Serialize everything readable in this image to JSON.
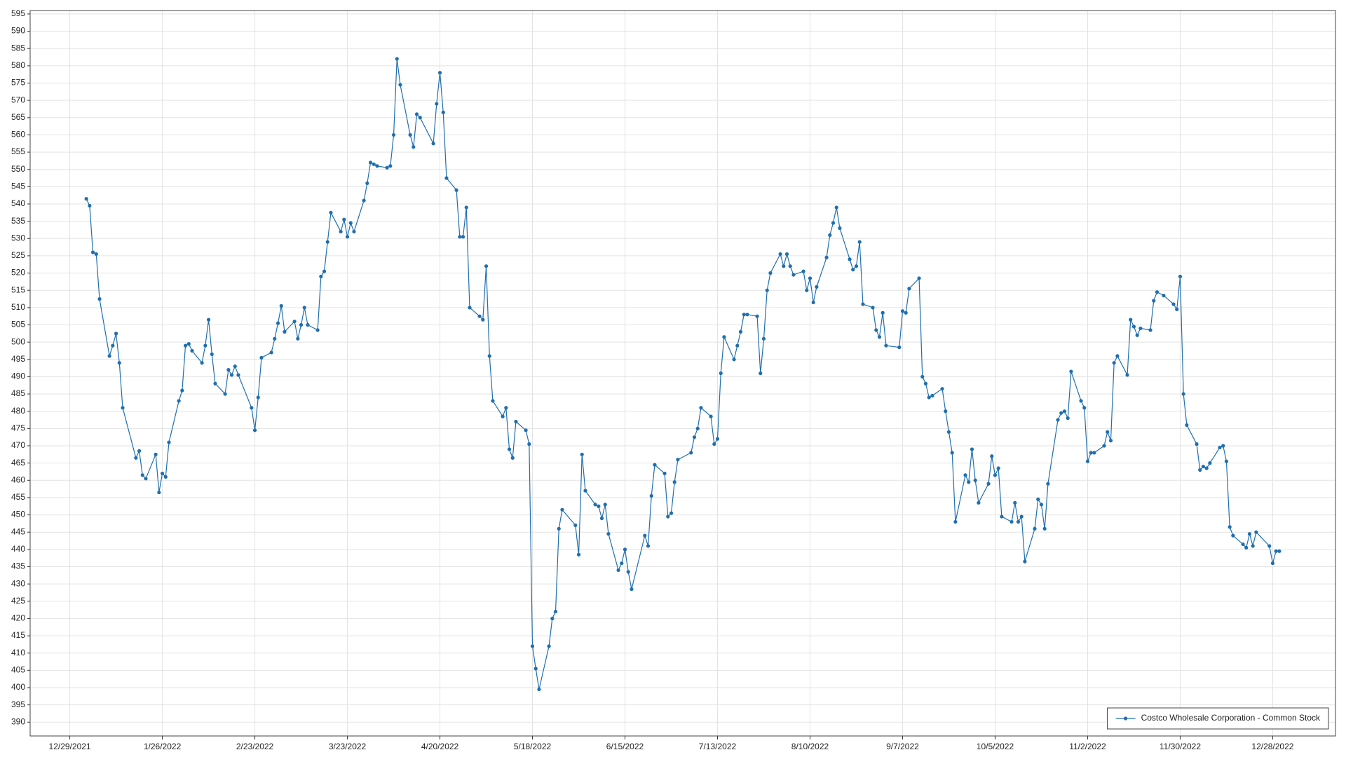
{
  "chart_data": {
    "type": "line",
    "x": [
      "1/3/2022",
      "1/4/2022",
      "1/5/2022",
      "1/6/2022",
      "1/7/2022",
      "1/10/2022",
      "1/11/2022",
      "1/12/2022",
      "1/13/2022",
      "1/14/2022",
      "1/18/2022",
      "1/19/2022",
      "1/20/2022",
      "1/21/2022",
      "1/24/2022",
      "1/25/2022",
      "1/26/2022",
      "1/27/2022",
      "1/28/2022",
      "1/31/2022",
      "2/1/2022",
      "2/2/2022",
      "2/3/2022",
      "2/4/2022",
      "2/7/2022",
      "2/8/2022",
      "2/9/2022",
      "2/10/2022",
      "2/11/2022",
      "2/14/2022",
      "2/15/2022",
      "2/16/2022",
      "2/17/2022",
      "2/18/2022",
      "2/22/2022",
      "2/23/2022",
      "2/24/2022",
      "2/25/2022",
      "2/28/2022",
      "3/1/2022",
      "3/2/2022",
      "3/3/2022",
      "3/4/2022",
      "3/7/2022",
      "3/8/2022",
      "3/9/2022",
      "3/10/2022",
      "3/11/2022",
      "3/14/2022",
      "3/15/2022",
      "3/16/2022",
      "3/17/2022",
      "3/18/2022",
      "3/21/2022",
      "3/22/2022",
      "3/23/2022",
      "3/24/2022",
      "3/25/2022",
      "3/28/2022",
      "3/29/2022",
      "3/30/2022",
      "3/31/2022",
      "4/1/2022",
      "4/4/2022",
      "4/5/2022",
      "4/6/2022",
      "4/7/2022",
      "4/8/2022",
      "4/11/2022",
      "4/12/2022",
      "4/13/2022",
      "4/14/2022",
      "4/18/2022",
      "4/19/2022",
      "4/20/2022",
      "4/21/2022",
      "4/22/2022",
      "4/25/2022",
      "4/26/2022",
      "4/27/2022",
      "4/28/2022",
      "4/29/2022",
      "5/2/2022",
      "5/3/2022",
      "5/4/2022",
      "5/5/2022",
      "5/6/2022",
      "5/9/2022",
      "5/10/2022",
      "5/11/2022",
      "5/12/2022",
      "5/13/2022",
      "5/16/2022",
      "5/17/2022",
      "5/18/2022",
      "5/19/2022",
      "5/20/2022",
      "5/23/2022",
      "5/24/2022",
      "5/25/2022",
      "5/26/2022",
      "5/27/2022",
      "5/31/2022",
      "6/1/2022",
      "6/2/2022",
      "6/3/2022",
      "6/6/2022",
      "6/7/2022",
      "6/8/2022",
      "6/9/2022",
      "6/10/2022",
      "6/13/2022",
      "6/14/2022",
      "6/15/2022",
      "6/16/2022",
      "6/17/2022",
      "6/21/2022",
      "6/22/2022",
      "6/23/2022",
      "6/24/2022",
      "6/27/2022",
      "6/28/2022",
      "6/29/2022",
      "6/30/2022",
      "7/1/2022",
      "7/5/2022",
      "7/6/2022",
      "7/7/2022",
      "7/8/2022",
      "7/11/2022",
      "7/12/2022",
      "7/13/2022",
      "7/14/2022",
      "7/15/2022",
      "7/18/2022",
      "7/19/2022",
      "7/20/2022",
      "7/21/2022",
      "7/22/2022",
      "7/25/2022",
      "7/26/2022",
      "7/27/2022",
      "7/28/2022",
      "7/29/2022",
      "8/1/2022",
      "8/2/2022",
      "8/3/2022",
      "8/4/2022",
      "8/5/2022",
      "8/8/2022",
      "8/9/2022",
      "8/10/2022",
      "8/11/2022",
      "8/12/2022",
      "8/15/2022",
      "8/16/2022",
      "8/17/2022",
      "8/18/2022",
      "8/19/2022",
      "8/22/2022",
      "8/23/2022",
      "8/24/2022",
      "8/25/2022",
      "8/26/2022",
      "8/29/2022",
      "8/30/2022",
      "8/31/2022",
      "9/1/2022",
      "9/2/2022",
      "9/6/2022",
      "9/7/2022",
      "9/8/2022",
      "9/9/2022",
      "9/12/2022",
      "9/13/2022",
      "9/14/2022",
      "9/15/2022",
      "9/16/2022",
      "9/19/2022",
      "9/20/2022",
      "9/21/2022",
      "9/22/2022",
      "9/23/2022",
      "9/26/2022",
      "9/27/2022",
      "9/28/2022",
      "9/29/2022",
      "9/30/2022",
      "10/3/2022",
      "10/4/2022",
      "10/5/2022",
      "10/6/2022",
      "10/7/2022",
      "10/10/2022",
      "10/11/2022",
      "10/12/2022",
      "10/13/2022",
      "10/14/2022",
      "10/17/2022",
      "10/18/2022",
      "10/19/2022",
      "10/20/2022",
      "10/21/2022",
      "10/24/2022",
      "10/25/2022",
      "10/26/2022",
      "10/27/2022",
      "10/28/2022",
      "10/31/2022",
      "11/1/2022",
      "11/2/2022",
      "11/3/2022",
      "11/4/2022",
      "11/7/2022",
      "11/8/2022",
      "11/9/2022",
      "11/10/2022",
      "11/11/2022",
      "11/14/2022",
      "11/15/2022",
      "11/16/2022",
      "11/17/2022",
      "11/18/2022",
      "11/21/2022",
      "11/22/2022",
      "11/23/2022",
      "11/25/2022",
      "11/28/2022",
      "11/29/2022",
      "11/30/2022",
      "12/1/2022",
      "12/2/2022",
      "12/5/2022",
      "12/6/2022",
      "12/7/2022",
      "12/8/2022",
      "12/9/2022",
      "12/12/2022",
      "12/13/2022",
      "12/14/2022",
      "12/15/2022",
      "12/16/2022",
      "12/19/2022",
      "12/20/2022",
      "12/21/2022",
      "12/22/2022",
      "12/23/2022",
      "12/27/2022",
      "12/28/2022",
      "12/29/2022",
      "12/30/2022"
    ],
    "series": [
      {
        "name": "Costco Wholesale Corporation - Common Stock",
        "color": "#1f6fae",
        "values": [
          541.5,
          539.5,
          526,
          525.5,
          512.5,
          496,
          499,
          502.5,
          494,
          481,
          466.5,
          468.5,
          461.5,
          460.5,
          467.5,
          456.5,
          462,
          461,
          471,
          483,
          486,
          499,
          499.5,
          497.5,
          494,
          499,
          506.5,
          496.5,
          488,
          485,
          492,
          490.5,
          493,
          490.5,
          481,
          474.5,
          484,
          495.5,
          497,
          501,
          505.5,
          510.5,
          503,
          506,
          501,
          505,
          510,
          505,
          503.5,
          519,
          520.5,
          529,
          537.5,
          532,
          535.5,
          530.5,
          534.5,
          532,
          541,
          546,
          552,
          551.5,
          551,
          550.5,
          551,
          560,
          582,
          574.5,
          560,
          556.5,
          566,
          565,
          557.5,
          569,
          578,
          566.5,
          547.5,
          544,
          530.5,
          530.5,
          539,
          510,
          507.5,
          506.5,
          522,
          496,
          483,
          478.5,
          481,
          469,
          466.5,
          477,
          474.5,
          470.5,
          412,
          405.5,
          399.5,
          412,
          420,
          422,
          446,
          451.5,
          447,
          438.5,
          467.5,
          457,
          453,
          452.5,
          449,
          453,
          444.5,
          434,
          436,
          440,
          433.5,
          428.5,
          444,
          441,
          455.5,
          464.5,
          462,
          449.5,
          450.5,
          459.5,
          466,
          468,
          472.5,
          475,
          481,
          478.5,
          470.5,
          472,
          491,
          501.5,
          495,
          499,
          503,
          508,
          508,
          507.5,
          491,
          501,
          515,
          520,
          525.5,
          522,
          525.5,
          522,
          519.5,
          520.5,
          515,
          518.5,
          511.5,
          516,
          524.5,
          531,
          534.5,
          539,
          533,
          524,
          521,
          522,
          529,
          511,
          510,
          503.5,
          501.5,
          508.5,
          499,
          498.5,
          509,
          508.5,
          515.5,
          518.5,
          490,
          488,
          484,
          484.5,
          486.5,
          480,
          474,
          468,
          448,
          461.5,
          459.5,
          469,
          460,
          453.5,
          459,
          467,
          461.5,
          463.5,
          449.5,
          448,
          453.5,
          448,
          449.5,
          436.5,
          446,
          454.5,
          453,
          446,
          459,
          477.5,
          479.5,
          480,
          478,
          491.5,
          483,
          481,
          465.5,
          468,
          468,
          470,
          474,
          471.5,
          494,
          496,
          490.5,
          506.5,
          504.5,
          502,
          504,
          503.5,
          512,
          514.5,
          513.5,
          511,
          509.5,
          519,
          485,
          476,
          470.5,
          463,
          464,
          463.5,
          465,
          469.5,
          470,
          465.5,
          446.5,
          444,
          441.5,
          440.5,
          444.5,
          441,
          445,
          441,
          436,
          439.5,
          439.5
        ]
      }
    ],
    "xlim": [
      "12/17/2021",
      "1/16/2023"
    ],
    "xticks": [
      "12/29/2021",
      "1/26/2022",
      "2/23/2022",
      "3/23/2022",
      "4/20/2022",
      "5/18/2022",
      "6/15/2022",
      "7/13/2022",
      "8/10/2022",
      "9/7/2022",
      "10/5/2022",
      "11/2/2022",
      "11/30/2022",
      "12/28/2022"
    ],
    "ylim": [
      386,
      596
    ],
    "yticks": [
      390,
      395,
      400,
      405,
      410,
      415,
      420,
      425,
      430,
      435,
      440,
      445,
      450,
      455,
      460,
      465,
      470,
      475,
      480,
      485,
      490,
      495,
      500,
      505,
      510,
      515,
      520,
      525,
      530,
      535,
      540,
      545,
      550,
      555,
      560,
      565,
      570,
      575,
      580,
      585,
      590,
      595
    ],
    "grid": true,
    "legend": "lower right"
  }
}
